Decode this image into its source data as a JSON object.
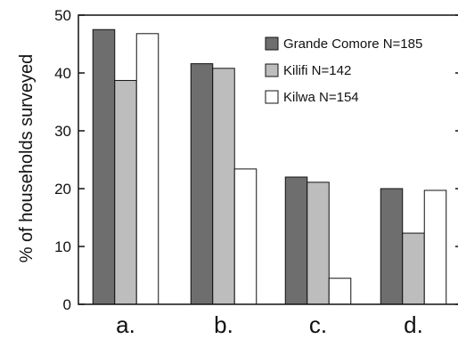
{
  "chart_data": {
    "type": "bar",
    "categories": [
      "a.",
      "b.",
      "c.",
      "d."
    ],
    "series": [
      {
        "name": "Grande Comore N=185",
        "color": "#6e6e6e",
        "values": [
          47.5,
          41.6,
          22.0,
          20.0
        ]
      },
      {
        "name": "Kilifi N=142",
        "color": "#bdbdbd",
        "values": [
          38.7,
          40.8,
          21.1,
          12.3
        ]
      },
      {
        "name": "Kilwa N=154",
        "color": "#ffffff",
        "values": [
          46.8,
          23.4,
          4.5,
          19.7
        ]
      }
    ],
    "ylabel": "% of households surveyed",
    "xlabel": "",
    "ylim": [
      0,
      50
    ],
    "yticks": [
      0,
      10,
      20,
      30,
      40,
      50
    ],
    "grid": false,
    "legend_position": "top-right"
  }
}
